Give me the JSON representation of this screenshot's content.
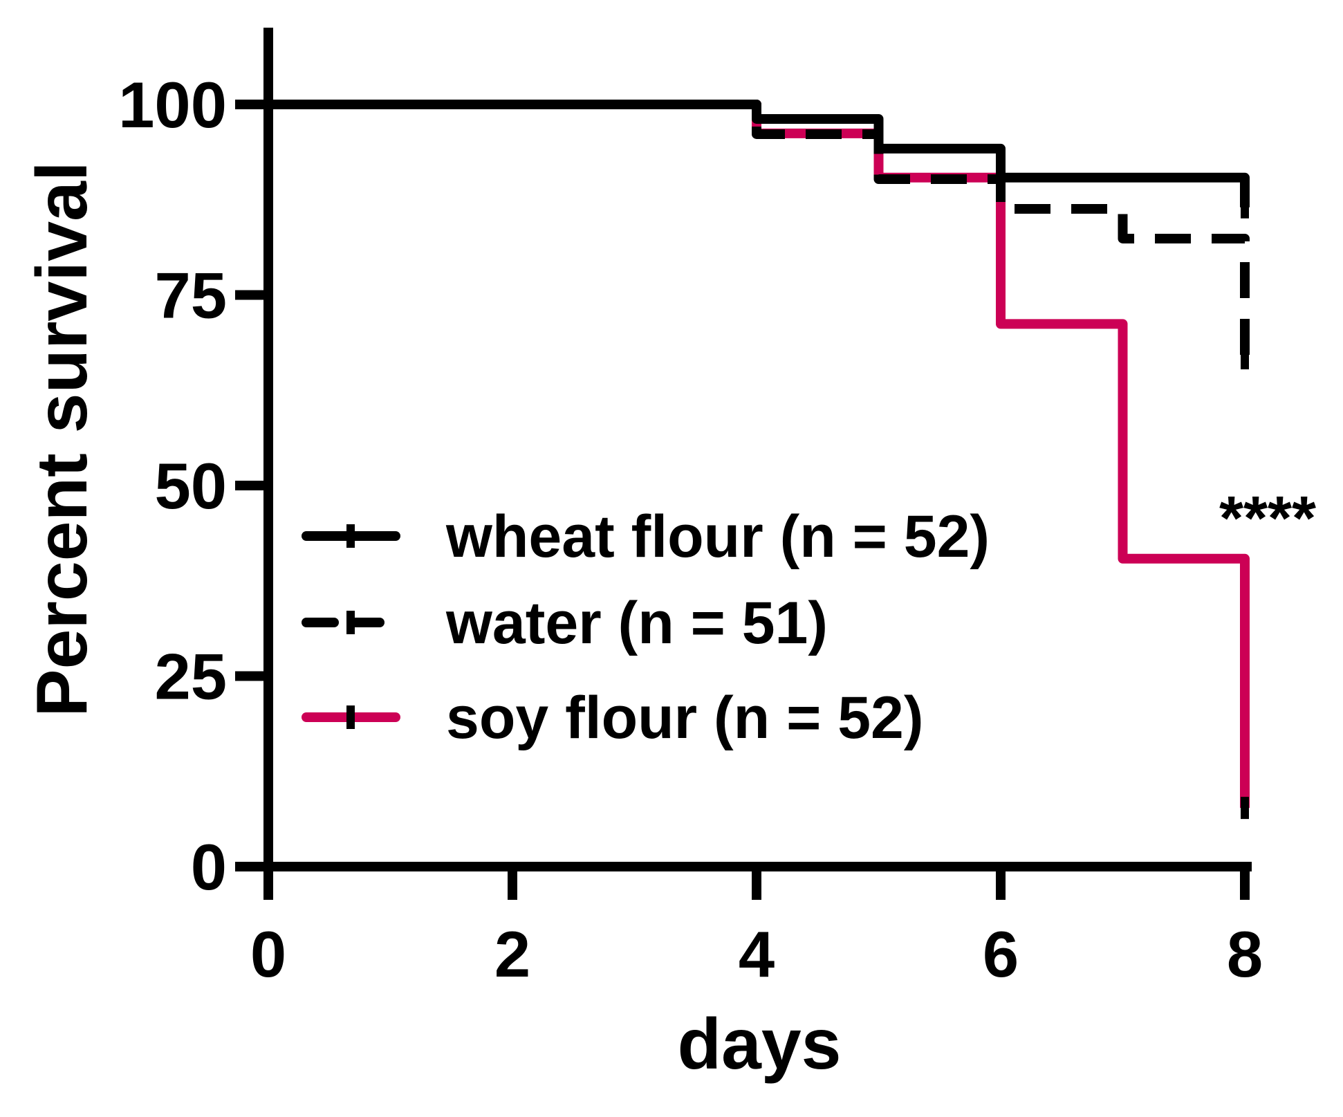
{
  "chart_data": {
    "type": "line",
    "subtype": "kaplan-meier-survival",
    "xlabel": "days",
    "ylabel": "Percent survival",
    "xlim": [
      0,
      8
    ],
    "ylim": [
      0,
      110
    ],
    "xticks": [
      0,
      2,
      4,
      6,
      8
    ],
    "yticks": [
      0,
      25,
      50,
      75,
      100
    ],
    "xtick_labels": [
      "0",
      "2",
      "4",
      "6",
      "8"
    ],
    "ytick_labels": [
      "0",
      "25",
      "50",
      "75",
      "100"
    ],
    "grid": false,
    "legend_placement": "center-left",
    "annotations": [
      {
        "text": "****",
        "x": 7.5,
        "y": 47
      }
    ],
    "series": [
      {
        "name": "wheat flour (n = 52)",
        "color": "#000000",
        "style": "solid",
        "x": [
          0,
          4,
          5,
          6,
          8
        ],
        "y": [
          100,
          98.1,
          94.2,
          90.4,
          86.5
        ]
      },
      {
        "name": "water (n = 51)",
        "color": "#000000",
        "style": "dashed",
        "x": [
          0,
          4,
          5,
          6,
          7,
          8
        ],
        "y": [
          100,
          96.1,
          90.2,
          86.3,
          82.4,
          66.7
        ]
      },
      {
        "name": "soy flour (n = 52)",
        "color": "#cc0055",
        "style": "solid",
        "x": [
          0,
          4,
          5,
          6,
          7,
          8
        ],
        "y": [
          100,
          96.2,
          90.4,
          71.2,
          40.4,
          7.7
        ]
      }
    ]
  }
}
